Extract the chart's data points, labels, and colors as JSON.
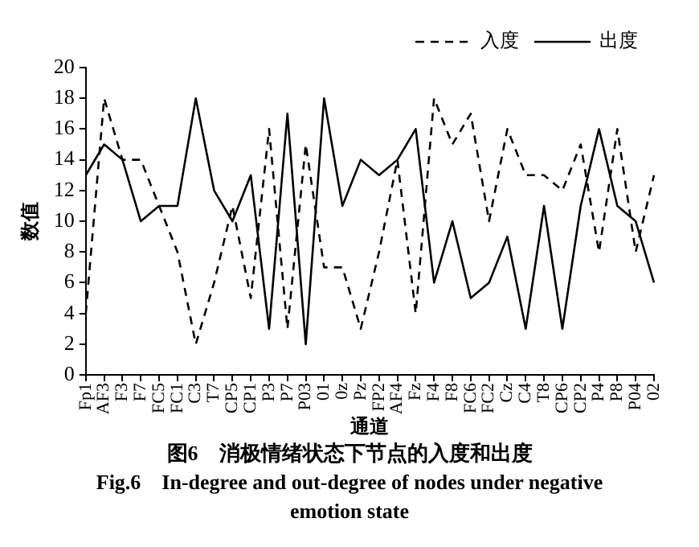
{
  "chart_data": {
    "type": "line",
    "xlabel": "通道",
    "ylabel": "数值",
    "categories": [
      "Fp1",
      "AF3",
      "F3",
      "F7",
      "FC5",
      "FC1",
      "C3",
      "T7",
      "CP5",
      "CP1",
      "P3",
      "P7",
      "P03",
      "01",
      "0z",
      "Pz",
      "FP2",
      "AF4",
      "Fz",
      "F4",
      "F8",
      "FC6",
      "FC2",
      "Cz",
      "C4",
      "T8",
      "CP6",
      "CP2",
      "P4",
      "P8",
      "P04",
      "02"
    ],
    "series": [
      {
        "name": "入度",
        "color": "#000000",
        "line_style": "dashed",
        "values": [
          4,
          18,
          14,
          14,
          11,
          8,
          2,
          6,
          11,
          5,
          16,
          3,
          15,
          7,
          7,
          3,
          8,
          14,
          4,
          18,
          15,
          17,
          10,
          16,
          13,
          13,
          12,
          15,
          8,
          16,
          8,
          13
        ]
      },
      {
        "name": "出度",
        "color": "#000000",
        "line_style": "solid",
        "values": [
          13,
          15,
          14,
          10,
          11,
          11,
          18,
          12,
          10,
          13,
          3,
          17,
          2,
          18,
          11,
          14,
          13,
          14,
          16,
          6,
          10,
          5,
          6,
          9,
          3,
          11,
          3,
          11,
          16,
          11,
          10,
          6
        ]
      }
    ],
    "ylim": [
      0,
      20
    ],
    "yticks": [
      0,
      2,
      4,
      6,
      8,
      10,
      12,
      14,
      16,
      18,
      20
    ],
    "grid": false,
    "legend": "top right",
    "marker": "none",
    "annotations": [
      "图6　消极情绪状态下节点的入度和出度",
      "Fig.6　In-degree and out-degree of nodes under negative emotion state"
    ]
  }
}
